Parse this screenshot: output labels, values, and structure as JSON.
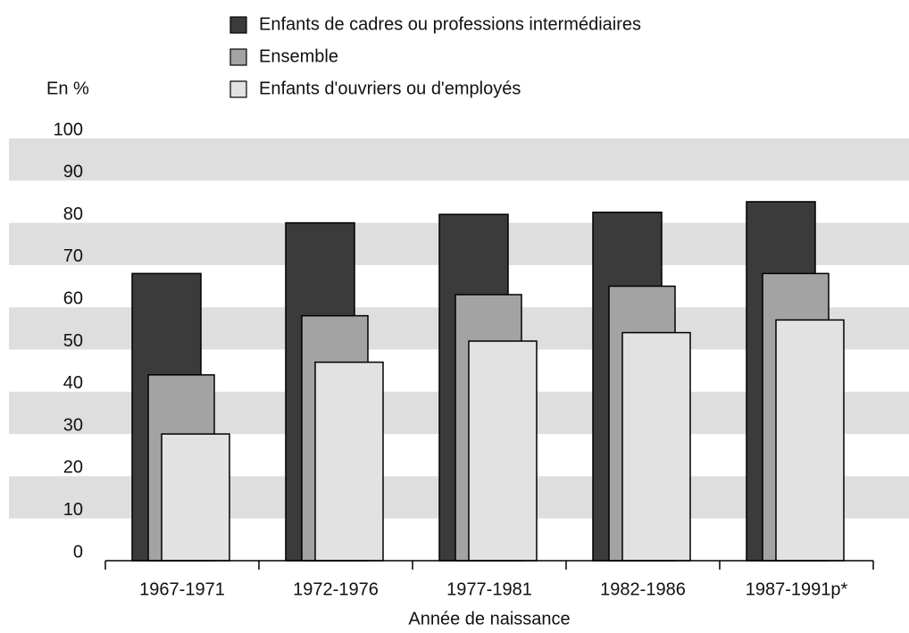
{
  "chart_data": {
    "type": "bar",
    "y_unit_label": "En %",
    "x_axis_title": "Année de naissance",
    "categories": [
      "1967-1971",
      "1972-1976",
      "1977-1981",
      "1982-1986",
      "1987-1991p*"
    ],
    "series": [
      {
        "name": "Enfants de cadres ou professions intermédiaires",
        "color": "#3b3b3b",
        "values": [
          68,
          80,
          82,
          82.5,
          85
        ]
      },
      {
        "name": "Ensemble",
        "color": "#a3a3a3",
        "values": [
          44,
          58,
          63,
          65,
          68
        ]
      },
      {
        "name": "Enfants d'ouvriers ou d'employés",
        "color": "#e2e2e2",
        "values": [
          30,
          47,
          52,
          54,
          57
        ]
      }
    ],
    "ylim": [
      0,
      100
    ],
    "yticks": [
      0,
      10,
      20,
      30,
      40,
      50,
      60,
      70,
      80,
      90,
      100
    ],
    "grid": "bands",
    "band_color": "#dedede"
  }
}
